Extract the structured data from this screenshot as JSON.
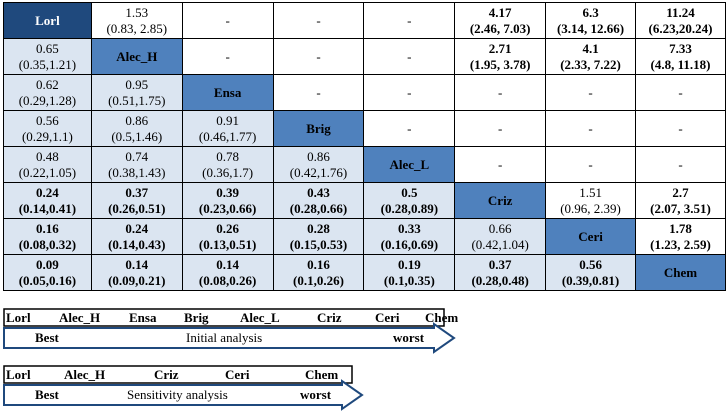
{
  "league_table": {
    "rows": [
      [
        {
          "type": "diag",
          "name": "Lorl"
        },
        {
          "v": "1.53",
          "ci": "(0.83, 2.85)",
          "bold": false
        },
        {
          "v": "-"
        },
        {
          "v": "-"
        },
        {
          "v": "-"
        },
        {
          "v": "4.17",
          "ci": "(2.46, 7.03)",
          "bold": true
        },
        {
          "v": "6.3",
          "ci": "(3.14, 12.66)",
          "bold": true
        },
        {
          "v": "11.24",
          "ci": "(6.23,20.24)",
          "bold": true
        }
      ],
      [
        {
          "v": "0.65",
          "ci": "(0.35,1.21)",
          "bold": false,
          "lower": true
        },
        {
          "type": "diag",
          "name": "Alec_H"
        },
        {
          "v": "-"
        },
        {
          "v": "-"
        },
        {
          "v": "-"
        },
        {
          "v": "2.71",
          "ci": "(1.95, 3.78)",
          "bold": true
        },
        {
          "v": "4.1",
          "ci": "(2.33, 7.22)",
          "bold": true
        },
        {
          "v": "7.33",
          "ci": "(4.8, 11.18)",
          "bold": true
        }
      ],
      [
        {
          "v": "0.62",
          "ci": "(0.29,1.28)",
          "bold": false,
          "lower": true
        },
        {
          "v": "0.95",
          "ci": "(0.51,1.75)",
          "bold": false,
          "lower": true
        },
        {
          "type": "diag",
          "name": "Ensa"
        },
        {
          "v": "-"
        },
        {
          "v": "-"
        },
        {
          "v": "-"
        },
        {
          "v": "-"
        },
        {
          "v": "-"
        }
      ],
      [
        {
          "v": "0.56",
          "ci": "(0.29,1.1)",
          "bold": false,
          "lower": true
        },
        {
          "v": "0.86",
          "ci": "(0.5,1.46)",
          "bold": false,
          "lower": true
        },
        {
          "v": "0.91",
          "ci": "(0.46,1.77)",
          "bold": false,
          "lower": true
        },
        {
          "type": "diag",
          "name": "Brig"
        },
        {
          "v": "-"
        },
        {
          "v": "-"
        },
        {
          "v": "-"
        },
        {
          "v": "-"
        }
      ],
      [
        {
          "v": "0.48",
          "ci": "(0.22,1.05)",
          "bold": false,
          "lower": true
        },
        {
          "v": "0.74",
          "ci": "(0.38,1.43)",
          "bold": false,
          "lower": true
        },
        {
          "v": "0.78",
          "ci": "(0.36,1.7)",
          "bold": false,
          "lower": true
        },
        {
          "v": "0.86",
          "ci": "(0.42,1.76)",
          "bold": false,
          "lower": true
        },
        {
          "type": "diag",
          "name": "Alec_L"
        },
        {
          "v": "-"
        },
        {
          "v": "-"
        },
        {
          "v": "-"
        }
      ],
      [
        {
          "v": "0.24",
          "ci": "(0.14,0.41)",
          "bold": true,
          "lower": true
        },
        {
          "v": "0.37",
          "ci": "(0.26,0.51)",
          "bold": true,
          "lower": true
        },
        {
          "v": "0.39",
          "ci": "(0.23,0.66)",
          "bold": true,
          "lower": true
        },
        {
          "v": "0.43",
          "ci": "(0.28,0.66)",
          "bold": true,
          "lower": true
        },
        {
          "v": "0.5",
          "ci": "(0.28,0.89)",
          "bold": true,
          "lower": true
        },
        {
          "type": "diag",
          "name": "Criz"
        },
        {
          "v": "1.51",
          "ci": "(0.96, 2.39)",
          "bold": false
        },
        {
          "v": "2.7",
          "ci": "(2.07, 3.51)",
          "bold": true
        }
      ],
      [
        {
          "v": "0.16",
          "ci": "(0.08,0.32)",
          "bold": true,
          "lower": true
        },
        {
          "v": "0.24",
          "ci": "(0.14,0.43)",
          "bold": true,
          "lower": true
        },
        {
          "v": "0.26",
          "ci": "(0.13,0.51)",
          "bold": true,
          "lower": true
        },
        {
          "v": "0.28",
          "ci": "(0.15,0.53)",
          "bold": true,
          "lower": true
        },
        {
          "v": "0.33",
          "ci": "(0.16,0.69)",
          "bold": true,
          "lower": true
        },
        {
          "v": "0.66",
          "ci": "(0.42,1.04)",
          "bold": false,
          "lower": true
        },
        {
          "type": "diag",
          "name": "Ceri"
        },
        {
          "v": "1.78",
          "ci": "(1.23, 2.59)",
          "bold": true
        }
      ],
      [
        {
          "v": "0.09",
          "ci": "(0.05,0.16)",
          "bold": true,
          "lower": true
        },
        {
          "v": "0.14",
          "ci": "(0.09,0.21)",
          "bold": true,
          "lower": true
        },
        {
          "v": "0.14",
          "ci": "(0.08,0.26)",
          "bold": true,
          "lower": true
        },
        {
          "v": "0.16",
          "ci": "(0.1,0.26)",
          "bold": true,
          "lower": true
        },
        {
          "v": "0.19",
          "ci": "(0.1,0.35)",
          "bold": true,
          "lower": true
        },
        {
          "v": "0.37",
          "ci": "(0.28,0.48)",
          "bold": true,
          "lower": true
        },
        {
          "v": "0.56",
          "ci": "(0.39,0.81)",
          "bold": true,
          "lower": true
        },
        {
          "type": "diag",
          "name": "Chem"
        }
      ]
    ]
  },
  "initial_ranking": {
    "items": [
      "Lorl",
      "Alec_H",
      "Ensa",
      "Brig",
      "Alec_L",
      "Criz",
      "Ceri",
      "Chem"
    ],
    "best": "Best",
    "caption": "Initial analysis",
    "worst": "worst"
  },
  "sensitivity_ranking": {
    "items": [
      "Lorl",
      "Alec_H",
      "Criz",
      "Ceri",
      "Chem"
    ],
    "best": "Best",
    "caption": "Sensitivity  analysis",
    "worst": "worst"
  },
  "colors": {
    "diagonal": "#4f81bd",
    "diagonal_first": "#1f497d",
    "lower_triangle": "#dbe5f1",
    "arrow_outline": "#1f497d"
  }
}
